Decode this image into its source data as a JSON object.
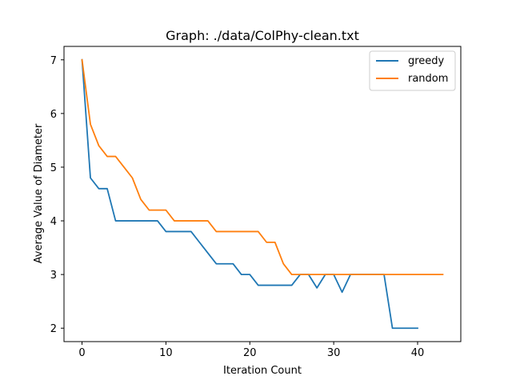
{
  "chart_data": {
    "type": "line",
    "title": "Graph: ./data/ColPhy-clean.txt",
    "xlabel": "Iteration Count",
    "ylabel": "Average Value of Diameter",
    "xlim": [
      -2.15,
      45.15
    ],
    "ylim": [
      1.75,
      7.25
    ],
    "xticks": [
      0,
      10,
      20,
      30,
      40
    ],
    "yticks": [
      2,
      3,
      4,
      5,
      6,
      7
    ],
    "grid": false,
    "legend_position": "top-right",
    "series": [
      {
        "name": "greedy",
        "color": "#1f77b4",
        "x": [
          0,
          1,
          2,
          3,
          4,
          5,
          6,
          7,
          8,
          9,
          10,
          11,
          12,
          13,
          14,
          15,
          16,
          17,
          18,
          19,
          20,
          21,
          22,
          23,
          24,
          25,
          26,
          27,
          28,
          29,
          30,
          31,
          32,
          33,
          34,
          35,
          36,
          37,
          38,
          39,
          40
        ],
        "y": [
          7,
          4.8,
          4.6,
          4.6,
          4,
          4,
          4,
          4,
          4,
          4,
          3.8,
          3.8,
          3.8,
          3.8,
          3.6,
          3.4,
          3.2,
          3.2,
          3.2,
          3,
          3,
          2.8,
          2.8,
          2.8,
          2.8,
          2.8,
          3,
          3,
          2.75,
          3,
          3,
          2.67,
          3,
          3,
          3,
          3,
          3,
          2,
          2,
          2,
          2
        ]
      },
      {
        "name": "random",
        "color": "#ff7f0e",
        "x": [
          0,
          1,
          2,
          3,
          4,
          5,
          6,
          7,
          8,
          9,
          10,
          11,
          12,
          13,
          14,
          15,
          16,
          17,
          18,
          19,
          20,
          21,
          22,
          23,
          24,
          25,
          26,
          27,
          28,
          29,
          30,
          31,
          32,
          33,
          34,
          35,
          36,
          37,
          38,
          39,
          40,
          41,
          42,
          43
        ],
        "y": [
          7,
          5.8,
          5.4,
          5.2,
          5.2,
          5,
          4.8,
          4.4,
          4.2,
          4.2,
          4.2,
          4,
          4,
          4,
          4,
          4,
          3.8,
          3.8,
          3.8,
          3.8,
          3.8,
          3.8,
          3.6,
          3.6,
          3.2,
          3,
          3,
          3,
          3,
          3,
          3,
          3,
          3,
          3,
          3,
          3,
          3,
          3,
          3,
          3,
          3,
          3,
          3,
          3
        ]
      }
    ]
  }
}
